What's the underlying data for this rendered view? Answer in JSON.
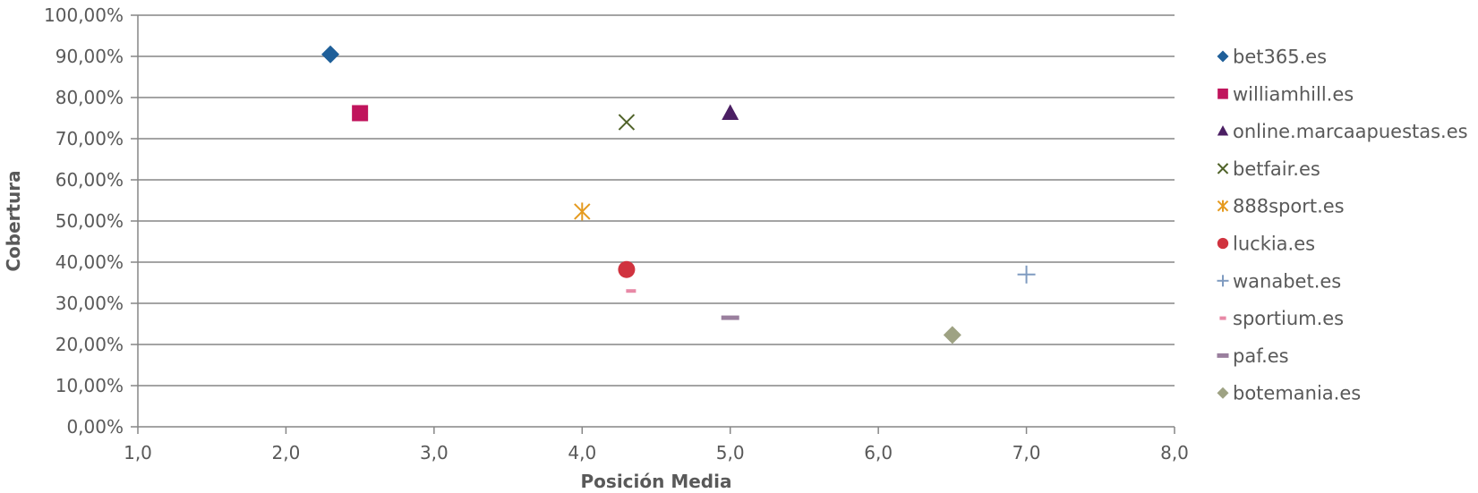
{
  "chart_data": {
    "type": "scatter",
    "xlabel": "Posición Media",
    "ylabel": "Cobertura",
    "xlim": [
      1,
      8
    ],
    "ylim": [
      0,
      100
    ],
    "x_ticks": [
      "1,0",
      "2,0",
      "3,0",
      "4,0",
      "5,0",
      "6,0",
      "7,0",
      "8,0"
    ],
    "y_ticks": [
      "0,00%",
      "10,00%",
      "20,00%",
      "30,00%",
      "40,00%",
      "50,00%",
      "60,00%",
      "70,00%",
      "80,00%",
      "90,00%",
      "100,00%"
    ],
    "grid": "horizontal",
    "legend_position": "right",
    "series": [
      {
        "name": "bet365.es",
        "x": 2.3,
        "y": 90.5,
        "marker": "diamond",
        "color": "#1f5f99"
      },
      {
        "name": "williamhill.es",
        "x": 2.5,
        "y": 76.2,
        "marker": "square",
        "color": "#c0145c"
      },
      {
        "name": "online.marcaapuestas.es",
        "x": 5.0,
        "y": 76.2,
        "marker": "triangle",
        "color": "#4b1f63"
      },
      {
        "name": "betfair.es",
        "x": 4.3,
        "y": 74.0,
        "marker": "x",
        "color": "#4f6228"
      },
      {
        "name": "888sport.es",
        "x": 4.0,
        "y": 52.3,
        "marker": "star",
        "color": "#e59a1e"
      },
      {
        "name": "luckia.es",
        "x": 4.3,
        "y": 38.2,
        "marker": "circle",
        "color": "#d0333f"
      },
      {
        "name": "wanabet.es",
        "x": 7.0,
        "y": 37.0,
        "marker": "plus",
        "color": "#7f9bc0"
      },
      {
        "name": "sportium.es",
        "x": 4.33,
        "y": 33.0,
        "marker": "dash-small",
        "color": "#e889a6"
      },
      {
        "name": "paf.es",
        "x": 5.0,
        "y": 26.5,
        "marker": "dash",
        "color": "#9a7f9e"
      },
      {
        "name": "botemania.es",
        "x": 6.5,
        "y": 22.3,
        "marker": "diamond",
        "color": "#9ea283"
      }
    ]
  }
}
